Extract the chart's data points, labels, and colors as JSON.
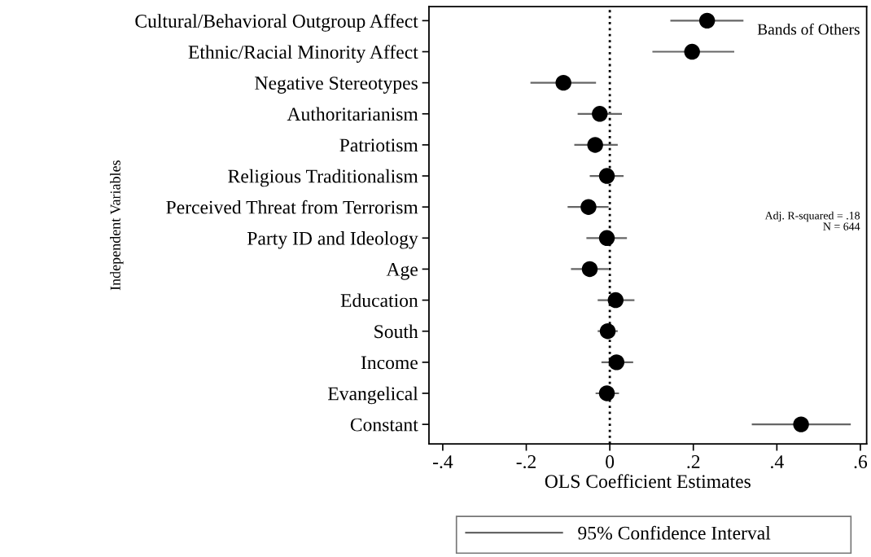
{
  "chart_data": {
    "type": "scatter",
    "orientation": "horizontal",
    "xlabel": "OLS Coefficient Estimates",
    "ylabel": "Independent Variables",
    "categories": [
      "Cultural/Behavioral Outgroup Affect",
      "Ethnic/Racial Minority Affect",
      "Negative Stereotypes",
      "Authoritarianism",
      "Patriotism",
      "Religious Traditionalism",
      "Perceived Threat from Terrorism",
      "Party ID and Ideology",
      "Age",
      "Education",
      "South",
      "Income",
      "Evangelical",
      "Constant"
    ],
    "series": [
      {
        "name": "95% Confidence Interval",
        "color": "#000000",
        "values": [
          0.233,
          0.197,
          -0.111,
          -0.024,
          -0.035,
          -0.007,
          -0.051,
          -0.007,
          -0.048,
          0.014,
          -0.005,
          0.016,
          -0.007,
          0.458
        ],
        "errors": [
          [
            0.145,
            0.32
          ],
          [
            0.102,
            0.298
          ],
          [
            -0.19,
            -0.033
          ],
          [
            -0.077,
            0.029
          ],
          [
            -0.085,
            0.019
          ],
          [
            -0.048,
            0.033
          ],
          [
            -0.101,
            -0.003
          ],
          [
            -0.056,
            0.041
          ],
          [
            -0.093,
            -0.003
          ],
          [
            -0.029,
            0.059
          ],
          [
            -0.029,
            0.019
          ],
          [
            -0.02,
            0.056
          ],
          [
            -0.034,
            0.022
          ],
          [
            0.34,
            0.577
          ]
        ]
      }
    ],
    "xlim": [
      -0.433,
      0.615
    ],
    "xticks": [
      {
        "value": -0.4,
        "label": "-.4"
      },
      {
        "value": -0.2,
        "label": "-.2"
      },
      0,
      {
        "value": 0.2,
        "label": ".2"
      },
      {
        "value": 0.4,
        "label": ".4"
      },
      {
        "value": 0.6,
        "label": ".6"
      }
    ],
    "ref_lines": [
      {
        "axis": "x",
        "value": 0,
        "color": "#000000",
        "line_style": "dotted"
      }
    ],
    "annotations": [
      "Bands of Others",
      "Adj. R-squared = .18",
      "N = 644"
    ],
    "legend": "bottom",
    "grid": false,
    "marker": "circle"
  }
}
